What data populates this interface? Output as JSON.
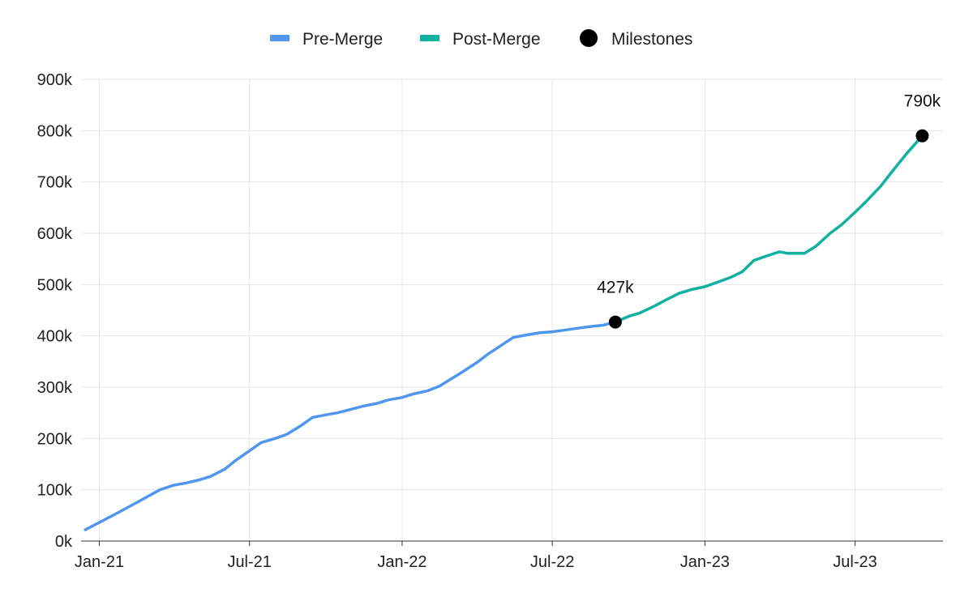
{
  "chart_data": {
    "type": "line",
    "title": "",
    "xlabel": "",
    "ylabel": "",
    "x_tick_labels": [
      "Jan-21",
      "Jul-21",
      "Jan-22",
      "Jul-22",
      "Jan-23",
      "Jul-23"
    ],
    "x_tick_dates": [
      "2021-01-01",
      "2021-07-01",
      "2022-01-01",
      "2022-07-01",
      "2023-01-01",
      "2023-07-01"
    ],
    "y_tick_labels": [
      "0k",
      "100k",
      "200k",
      "300k",
      "400k",
      "500k",
      "600k",
      "700k",
      "800k",
      "900k"
    ],
    "y_ticks": [
      0,
      100000,
      200000,
      300000,
      400000,
      500000,
      600000,
      700000,
      800000,
      900000
    ],
    "ylim": [
      0,
      900000
    ],
    "xlim": [
      "2020-12-10",
      "2023-10-15"
    ],
    "grid": true,
    "legend_position": "top-center",
    "legend": [
      {
        "label": "Pre-Merge",
        "color": "#4f97ee",
        "marker": "line"
      },
      {
        "label": "Post-Merge",
        "color": "#12b0a0",
        "marker": "line"
      },
      {
        "label": "Milestones",
        "color": "#000000",
        "marker": "circle"
      }
    ],
    "series": [
      {
        "name": "Pre-Merge",
        "color": "#4f97ee",
        "points": [
          [
            "2020-12-15",
            22000
          ],
          [
            "2021-01-15",
            48000
          ],
          [
            "2021-02-15",
            75000
          ],
          [
            "2021-03-15",
            100000
          ],
          [
            "2021-04-01",
            109000
          ],
          [
            "2021-04-15",
            113000
          ],
          [
            "2021-05-01",
            119000
          ],
          [
            "2021-05-15",
            126000
          ],
          [
            "2021-06-01",
            140000
          ],
          [
            "2021-06-15",
            158000
          ],
          [
            "2021-07-01",
            176000
          ],
          [
            "2021-07-15",
            192000
          ],
          [
            "2021-08-01",
            200000
          ],
          [
            "2021-08-15",
            208000
          ],
          [
            "2021-09-01",
            225000
          ],
          [
            "2021-09-15",
            241000
          ],
          [
            "2021-10-01",
            246000
          ],
          [
            "2021-10-15",
            250000
          ],
          [
            "2021-11-01",
            257000
          ],
          [
            "2021-11-15",
            263000
          ],
          [
            "2021-12-01",
            268000
          ],
          [
            "2021-12-15",
            275000
          ],
          [
            "2022-01-01",
            280000
          ],
          [
            "2022-01-15",
            287000
          ],
          [
            "2022-02-01",
            293000
          ],
          [
            "2022-02-15",
            302000
          ],
          [
            "2022-03-01",
            316000
          ],
          [
            "2022-03-15",
            330000
          ],
          [
            "2022-04-01",
            348000
          ],
          [
            "2022-04-15",
            365000
          ],
          [
            "2022-05-01",
            382000
          ],
          [
            "2022-05-15",
            397000
          ],
          [
            "2022-06-01",
            402000
          ],
          [
            "2022-06-15",
            406000
          ],
          [
            "2022-07-01",
            408000
          ],
          [
            "2022-07-15",
            411000
          ],
          [
            "2022-08-01",
            415000
          ],
          [
            "2022-08-15",
            418000
          ],
          [
            "2022-09-01",
            421000
          ],
          [
            "2022-09-15",
            427000
          ]
        ]
      },
      {
        "name": "Post-Merge",
        "color": "#12b0a0",
        "points": [
          [
            "2022-09-15",
            427000
          ],
          [
            "2022-10-01",
            438000
          ],
          [
            "2022-10-15",
            445000
          ],
          [
            "2022-11-01",
            458000
          ],
          [
            "2022-11-15",
            470000
          ],
          [
            "2022-12-01",
            483000
          ],
          [
            "2022-12-15",
            490000
          ],
          [
            "2023-01-01",
            496000
          ],
          [
            "2023-01-15",
            504000
          ],
          [
            "2023-02-01",
            514000
          ],
          [
            "2023-02-15",
            525000
          ],
          [
            "2023-03-01",
            547000
          ],
          [
            "2023-03-15",
            555000
          ],
          [
            "2023-04-01",
            564000
          ],
          [
            "2023-04-10",
            561000
          ],
          [
            "2023-05-01",
            561000
          ],
          [
            "2023-05-15",
            575000
          ],
          [
            "2023-06-01",
            600000
          ],
          [
            "2023-06-15",
            617000
          ],
          [
            "2023-07-01",
            641000
          ],
          [
            "2023-07-15",
            663000
          ],
          [
            "2023-08-01",
            692000
          ],
          [
            "2023-08-15",
            721000
          ],
          [
            "2023-09-01",
            755000
          ],
          [
            "2023-09-20",
            790000
          ]
        ]
      }
    ],
    "milestones": [
      {
        "date": "2022-09-15",
        "value": 427000,
        "label": "427k"
      },
      {
        "date": "2023-09-20",
        "value": 790000,
        "label": "790k"
      }
    ]
  }
}
